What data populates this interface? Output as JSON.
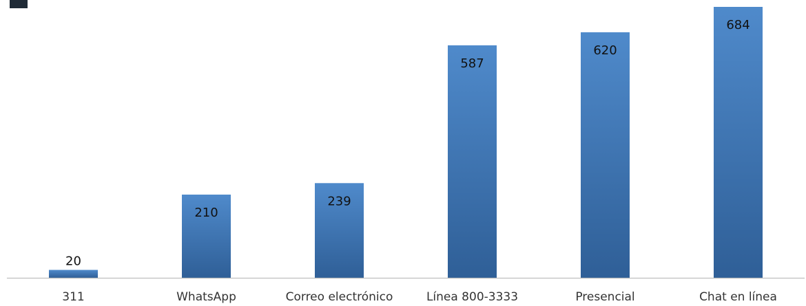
{
  "chart_data": {
    "type": "bar",
    "title": "",
    "xlabel": "",
    "ylabel": "",
    "categories": [
      "311",
      "WhatsApp",
      "Correo electrónico",
      "Línea 800-3333",
      "Presencial",
      "Chat en línea"
    ],
    "values": [
      20,
      210,
      239,
      587,
      620,
      684
    ],
    "ylim": [
      0,
      700
    ],
    "grid": false,
    "legend": "none",
    "colors": {
      "bar_top": "#4f8acb",
      "bar_bottom": "#2f5f97",
      "axis": "#bfbfbf"
    }
  }
}
